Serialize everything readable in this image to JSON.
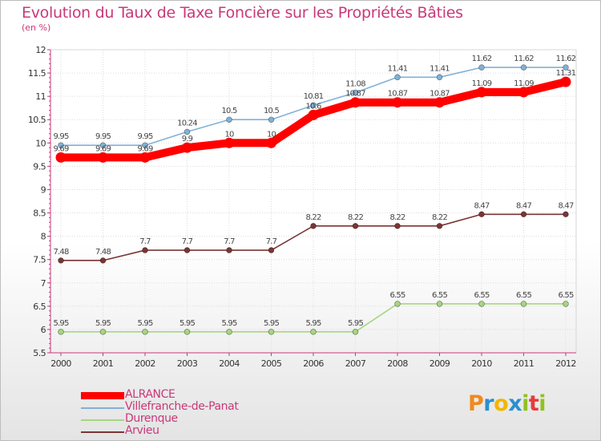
{
  "title": "Evolution du Taux de Taxe Foncière sur les Propriétés Bâties",
  "subtitle": "(en %)",
  "logo": {
    "letters": [
      "P",
      "r",
      "o",
      "x",
      "i",
      "t",
      "i"
    ],
    "colors": [
      "#f08a1c",
      "#2a8fd0",
      "#f2b600",
      "#2a8fd0",
      "#8fc21f",
      "#e83a3a",
      "#8fc21f"
    ]
  },
  "chart_data": {
    "type": "line",
    "x": [
      2000,
      2001,
      2002,
      2003,
      2004,
      2005,
      2006,
      2007,
      2008,
      2009,
      2010,
      2011,
      2012
    ],
    "ylim": [
      5.5,
      12
    ],
    "y_ticks": [
      5.5,
      6,
      6.5,
      7,
      7.5,
      8,
      8.5,
      9,
      9.5,
      10,
      10.5,
      11,
      11.5,
      12
    ],
    "legend_position": "bottom-left",
    "series": [
      {
        "name": "ALRANCE",
        "color": "#ff0000",
        "values": [
          9.69,
          9.69,
          9.69,
          9.9,
          10,
          10,
          10.6,
          10.87,
          10.87,
          10.87,
          11.09,
          11.09,
          11.31
        ],
        "labels": [
          "9.69",
          "9.69",
          "9.69",
          "9.9",
          "10",
          "10",
          "10.6",
          "10.87",
          "10.87",
          "10.87",
          "11.09",
          "11.09",
          "11.31"
        ]
      },
      {
        "name": "Villefranche-de-Panat",
        "color": "#7fb2d8",
        "values": [
          9.95,
          9.95,
          9.95,
          10.24,
          10.5,
          10.5,
          10.81,
          11.08,
          11.41,
          11.41,
          11.62,
          11.62,
          11.62
        ],
        "labels": [
          "9.95",
          "9.95",
          "9.95",
          "10.24",
          "10.5",
          "10.5",
          "10.81",
          "11.08",
          "11.41",
          "11.41",
          "11.62",
          "11.62",
          "11.62"
        ]
      },
      {
        "name": "Durenque",
        "color": "#a6d67e",
        "values": [
          5.95,
          5.95,
          5.95,
          5.95,
          5.95,
          5.95,
          5.95,
          5.95,
          6.55,
          6.55,
          6.55,
          6.55,
          6.55
        ],
        "labels": [
          "5.95",
          "5.95",
          "5.95",
          "5.95",
          "5.95",
          "5.95",
          "5.95",
          "5.95",
          "6.55",
          "6.55",
          "6.55",
          "6.55",
          "6.55"
        ]
      },
      {
        "name": "Arvieu",
        "color": "#7a3535",
        "values": [
          7.48,
          7.48,
          7.7,
          7.7,
          7.7,
          7.7,
          8.22,
          8.22,
          8.22,
          8.22,
          8.47,
          8.47,
          8.47
        ],
        "labels": [
          "7.48",
          "7.48",
          "7.7",
          "7.7",
          "7.7",
          "7.7",
          "8.22",
          "8.22",
          "8.22",
          "8.22",
          "8.47",
          "8.47",
          "8.47"
        ]
      }
    ]
  }
}
